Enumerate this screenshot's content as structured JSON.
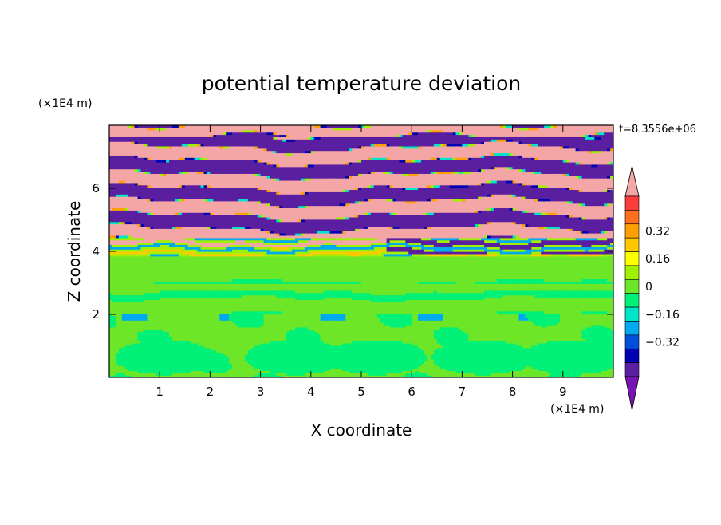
{
  "chart_data": {
    "type": "heatmap",
    "title": "potential temperature deviation",
    "xlabel": "X coordinate",
    "ylabel": "Z coordinate",
    "x_unit": "(×1E4 m)",
    "y_unit": "(×1E4 m)",
    "time_label": "t=8.3556e+06",
    "xlim": [
      0,
      10
    ],
    "ylim": [
      0,
      8
    ],
    "x_ticks": [
      "1",
      "2",
      "3",
      "4",
      "5",
      "6",
      "7",
      "8",
      "9"
    ],
    "y_ticks": [
      "2",
      "4",
      "6"
    ],
    "colorbar": {
      "levels": [
        -0.48,
        -0.4,
        -0.32,
        -0.24,
        -0.16,
        -0.08,
        0,
        0.08,
        0.16,
        0.24,
        0.32,
        0.4,
        0.48
      ],
      "labels": [
        "0.32",
        "0.16",
        "0",
        "−0.16",
        "−0.32"
      ],
      "colors_high_to_low": [
        "#f4a6a6",
        "#ff3c3c",
        "#ff6e1e",
        "#ffa000",
        "#ffc800",
        "#ffff00",
        "#a0f000",
        "#6ee628",
        "#00f078",
        "#00e6c8",
        "#00aaf0",
        "#0050dc",
        "#0000b4",
        "#5a1ea0",
        "#7814b4"
      ]
    },
    "regions": [
      {
        "z_range": [
          4.5,
          8.0
        ],
        "pattern": "alternating bands",
        "values": [
          0.48,
          -0.48
        ],
        "colors": [
          "#f4a6a6",
          "#6414aa"
        ]
      },
      {
        "z_range": [
          3.8,
          4.5
        ],
        "pattern": "mixed",
        "values": [
          0.48,
          -0.48,
          0.08,
          0.3,
          -0.2
        ]
      },
      {
        "z_range": [
          2.0,
          3.8
        ],
        "pattern": "mostly uniform",
        "values": [
          0.0,
          -0.04,
          0.04
        ]
      },
      {
        "z_range": [
          0.0,
          2.0
        ],
        "pattern": "eddies",
        "values": [
          -0.06,
          0.02
        ]
      }
    ]
  }
}
